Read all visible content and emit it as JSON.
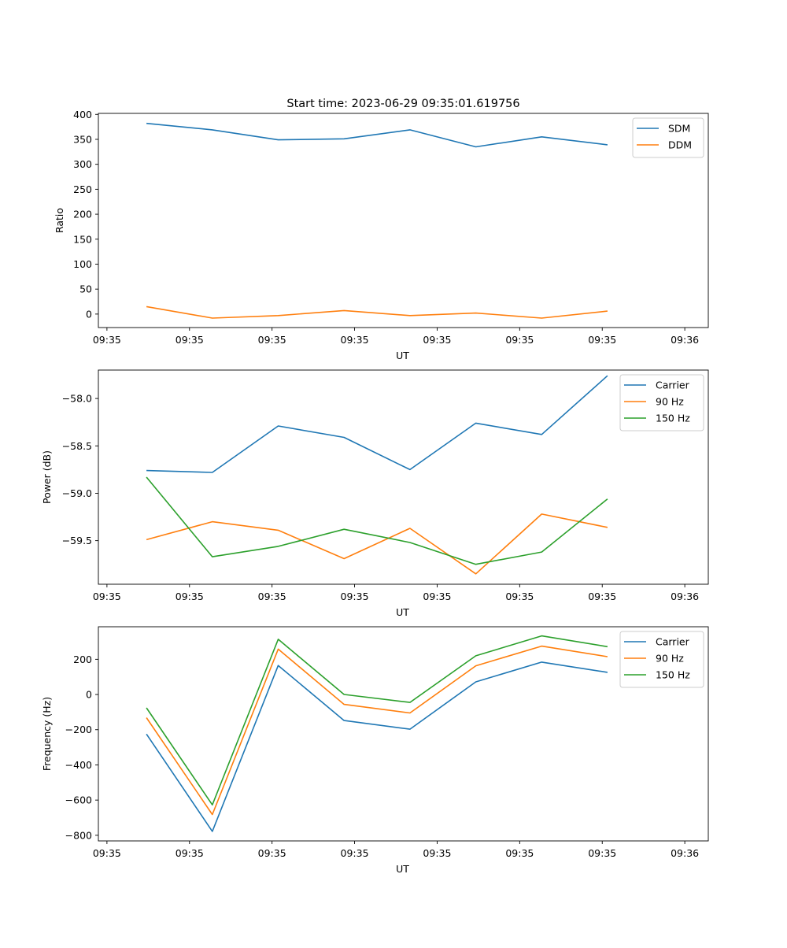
{
  "figure": {
    "title": "Start time: 2023-06-29 09:35:01.619756"
  },
  "colors": {
    "blue": "#1f77b4",
    "orange": "#ff7f0e",
    "green": "#2ca02c"
  },
  "chart_data": [
    {
      "type": "line",
      "title": "Start time: 2023-06-29 09:35:01.619756",
      "xlabel": "UT",
      "ylabel": "Ratio",
      "x_tick_labels": [
        "09:35",
        "09:35",
        "09:35",
        "09:35",
        "09:35",
        "09:35",
        "09:35"
      ],
      "x_last_tick_label": "09:36",
      "xlim": [
        -0.13,
        9.13
      ],
      "x": [
        0.6,
        1.6,
        2.6,
        3.6,
        4.6,
        5.6,
        6.6,
        7.6
      ],
      "ylim": [
        -27,
        402
      ],
      "yticks": [
        0,
        50,
        100,
        150,
        200,
        250,
        300,
        350,
        400
      ],
      "grid": false,
      "legend": "top-right",
      "series": [
        {
          "name": "SDM",
          "color": "#1f77b4",
          "values": [
            382,
            369,
            349,
            351,
            369,
            335,
            355,
            339
          ]
        },
        {
          "name": "DDM",
          "color": "#ff7f0e",
          "values": [
            15,
            -8,
            -3,
            7,
            -3,
            2,
            -8,
            6
          ]
        }
      ]
    },
    {
      "type": "line",
      "xlabel": "UT",
      "ylabel": "Power (dB)",
      "x_tick_labels": [
        "09:35",
        "09:35",
        "09:35",
        "09:35",
        "09:35",
        "09:35",
        "09:35"
      ],
      "x_last_tick_label": "09:36",
      "xlim": [
        -0.13,
        9.13
      ],
      "x": [
        0.6,
        1.6,
        2.6,
        3.6,
        4.6,
        5.6,
        6.6,
        7.6
      ],
      "ylim": [
        -59.96,
        -57.7
      ],
      "yticks": [
        -59.5,
        -59.0,
        -58.5,
        -58.0
      ],
      "ytick_labels": [
        "−59.5",
        "−59.0",
        "−58.5",
        "−58.0"
      ],
      "grid": false,
      "legend": "top-right",
      "series": [
        {
          "name": "Carrier",
          "color": "#1f77b4",
          "values": [
            -58.76,
            -58.78,
            -58.29,
            -58.41,
            -58.75,
            -58.26,
            -58.38,
            -57.76
          ]
        },
        {
          "name": "90 Hz",
          "color": "#ff7f0e",
          "values": [
            -59.49,
            -59.3,
            -59.39,
            -59.69,
            -59.37,
            -59.85,
            -59.22,
            -59.36
          ]
        },
        {
          "name": "150 Hz",
          "color": "#2ca02c",
          "values": [
            -58.83,
            -59.67,
            -59.56,
            -59.38,
            -59.52,
            -59.75,
            -59.62,
            -59.06
          ]
        }
      ]
    },
    {
      "type": "line",
      "xlabel": "UT",
      "ylabel": "Frequency (Hz)",
      "x_tick_labels": [
        "09:35",
        "09:35",
        "09:35",
        "09:35",
        "09:35",
        "09:35",
        "09:35"
      ],
      "x_last_tick_label": "09:36",
      "xlim": [
        -0.13,
        9.13
      ],
      "x": [
        0.6,
        1.6,
        2.6,
        3.6,
        4.6,
        5.6,
        6.6,
        7.6
      ],
      "ylim": [
        -832,
        385
      ],
      "yticks": [
        -800,
        -600,
        -400,
        -200,
        0,
        200
      ],
      "ytick_labels": [
        "−800",
        "−600",
        "−400",
        "−200",
        "0",
        "200"
      ],
      "grid": false,
      "legend": "top-right",
      "series": [
        {
          "name": "Carrier",
          "color": "#1f77b4",
          "values": [
            -225,
            -778,
            165,
            -148,
            -197,
            72,
            184,
            126
          ]
        },
        {
          "name": "90 Hz",
          "color": "#ff7f0e",
          "values": [
            -132,
            -682,
            258,
            -56,
            -105,
            163,
            275,
            215
          ]
        },
        {
          "name": "150 Hz",
          "color": "#2ca02c",
          "values": [
            -76,
            -627,
            314,
            0,
            -45,
            220,
            333,
            272
          ]
        }
      ]
    }
  ]
}
